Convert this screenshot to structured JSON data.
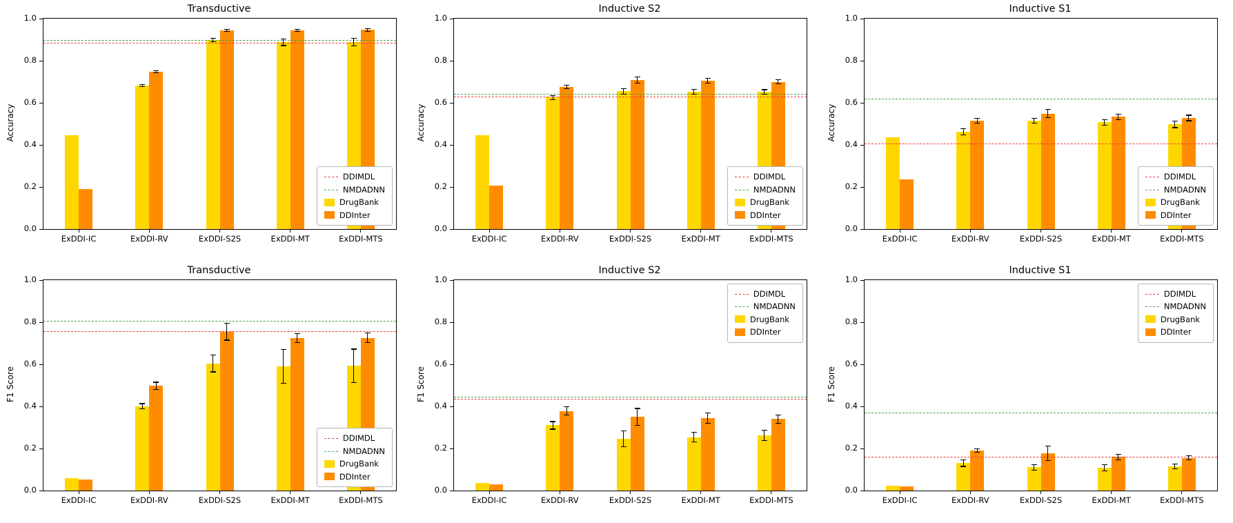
{
  "figure": {
    "background": "#ffffff",
    "error_bar_color": "#000000"
  },
  "chart_data": [
    {
      "type": "bar",
      "title": "Transductive",
      "ylabel": "Accuracy",
      "ylim": [
        0,
        1.0
      ],
      "yticks": [
        0.0,
        0.2,
        0.4,
        0.6,
        0.8,
        1.0
      ],
      "categories": [
        "ExDDI-IC",
        "ExDDI-RV",
        "ExDDI-S2S",
        "ExDDI-MT",
        "ExDDI-MTS"
      ],
      "series": [
        {
          "name": "DrugBank",
          "color": "#FFD700",
          "values": [
            0.447,
            0.683,
            0.899,
            0.887,
            0.888
          ],
          "errors": [
            0,
            0.005,
            0.008,
            0.015,
            0.018
          ]
        },
        {
          "name": "DDInter",
          "color": "#FF8C00",
          "values": [
            0.19,
            0.748,
            0.944,
            0.944,
            0.946
          ],
          "errors": [
            0,
            0.005,
            0.005,
            0.006,
            0.006
          ]
        }
      ],
      "hlines": [
        {
          "name": "DDIMDL",
          "color": "#ee3b3b",
          "value": 0.885,
          "style": "dashed"
        },
        {
          "name": "NMDADNN",
          "color": "#44a044",
          "value": 0.897,
          "style": "dashed"
        }
      ],
      "legend_position": "lower-right",
      "grid": false
    },
    {
      "type": "bar",
      "title": "Inductive S2",
      "ylabel": "Accuracy",
      "ylim": [
        0,
        1.0
      ],
      "yticks": [
        0.0,
        0.2,
        0.4,
        0.6,
        0.8,
        1.0
      ],
      "categories": [
        "ExDDI-IC",
        "ExDDI-RV",
        "ExDDI-S2S",
        "ExDDI-MT",
        "ExDDI-MTS"
      ],
      "series": [
        {
          "name": "DrugBank",
          "color": "#FFD700",
          "values": [
            0.445,
            0.625,
            0.655,
            0.653,
            0.652
          ],
          "errors": [
            0,
            0.01,
            0.013,
            0.012,
            0.01
          ]
        },
        {
          "name": "DDInter",
          "color": "#FF8C00",
          "values": [
            0.205,
            0.675,
            0.708,
            0.705,
            0.7
          ],
          "errors": [
            0,
            0.008,
            0.015,
            0.012,
            0.01
          ]
        }
      ],
      "hlines": [
        {
          "name": "DDIMDL",
          "color": "#ee3b3b",
          "value": 0.63,
          "style": "dashed"
        },
        {
          "name": "NMDADNN",
          "color": "#44a044",
          "value": 0.643,
          "style": "dashed"
        }
      ],
      "legend_position": "lower-right",
      "grid": false
    },
    {
      "type": "bar",
      "title": "Inductive S1",
      "ylabel": "Accuracy",
      "ylim": [
        0,
        1.0
      ],
      "yticks": [
        0.0,
        0.2,
        0.4,
        0.6,
        0.8,
        1.0
      ],
      "categories": [
        "ExDDI-IC",
        "ExDDI-RV",
        "ExDDI-S2S",
        "ExDDI-MT",
        "ExDDI-MTS"
      ],
      "series": [
        {
          "name": "DrugBank",
          "color": "#FFD700",
          "values": [
            0.435,
            0.462,
            0.515,
            0.507,
            0.497
          ],
          "errors": [
            0,
            0.015,
            0.012,
            0.013,
            0.015
          ]
        },
        {
          "name": "DDInter",
          "color": "#FF8C00",
          "values": [
            0.235,
            0.515,
            0.549,
            0.533,
            0.528
          ],
          "errors": [
            0,
            0.012,
            0.02,
            0.013,
            0.013
          ]
        }
      ],
      "hlines": [
        {
          "name": "DDIMDL",
          "color": "#ee3b3b",
          "value": 0.408,
          "style": "dashed"
        },
        {
          "name": "NMDADNN",
          "color": "#44a044",
          "value": 0.62,
          "style": "dashed"
        }
      ],
      "legend_position": "lower-right",
      "grid": false
    },
    {
      "type": "bar",
      "title": "Transductive",
      "ylabel": "F1 Score",
      "ylim": [
        0,
        1.0
      ],
      "yticks": [
        0.0,
        0.2,
        0.4,
        0.6,
        0.8,
        1.0
      ],
      "categories": [
        "ExDDI-IC",
        "ExDDI-RV",
        "ExDDI-S2S",
        "ExDDI-MT",
        "ExDDI-MTS"
      ],
      "series": [
        {
          "name": "DrugBank",
          "color": "#FFD700",
          "values": [
            0.058,
            0.401,
            0.604,
            0.59,
            0.592
          ],
          "errors": [
            0,
            0.012,
            0.04,
            0.08,
            0.08
          ]
        },
        {
          "name": "DDInter",
          "color": "#FF8C00",
          "values": [
            0.053,
            0.497,
            0.755,
            0.725,
            0.726
          ],
          "errors": [
            0,
            0.018,
            0.04,
            0.022,
            0.022
          ]
        }
      ],
      "hlines": [
        {
          "name": "DDIMDL",
          "color": "#ee3b3b",
          "value": 0.757,
          "style": "dashed"
        },
        {
          "name": "NMDADNN",
          "color": "#44a044",
          "value": 0.806,
          "style": "dashed"
        }
      ],
      "legend_position": "lower-right",
      "grid": false
    },
    {
      "type": "bar",
      "title": "Inductive S2",
      "ylabel": "F1 Score",
      "ylim": [
        0,
        1.0
      ],
      "yticks": [
        0.0,
        0.2,
        0.4,
        0.6,
        0.8,
        1.0
      ],
      "categories": [
        "ExDDI-IC",
        "ExDDI-RV",
        "ExDDI-S2S",
        "ExDDI-MT",
        "ExDDI-MTS"
      ],
      "series": [
        {
          "name": "DrugBank",
          "color": "#FFD700",
          "values": [
            0.035,
            0.31,
            0.245,
            0.254,
            0.263
          ],
          "errors": [
            0,
            0.018,
            0.038,
            0.022,
            0.025
          ]
        },
        {
          "name": "DDInter",
          "color": "#FF8C00",
          "values": [
            0.03,
            0.378,
            0.35,
            0.345,
            0.34
          ],
          "errors": [
            0,
            0.02,
            0.04,
            0.025,
            0.02
          ]
        }
      ],
      "hlines": [
        {
          "name": "DDIMDL",
          "color": "#ee3b3b",
          "value": 0.436,
          "style": "dashed"
        },
        {
          "name": "NMDADNN",
          "color": "#44a044",
          "value": 0.445,
          "style": "dashed"
        }
      ],
      "legend_position": "upper-right",
      "grid": false
    },
    {
      "type": "bar",
      "title": "Inductive S1",
      "ylabel": "F1 Score",
      "ylim": [
        0,
        1.0
      ],
      "yticks": [
        0.0,
        0.2,
        0.4,
        0.6,
        0.8,
        1.0
      ],
      "categories": [
        "ExDDI-IC",
        "ExDDI-RV",
        "ExDDI-S2S",
        "ExDDI-MT",
        "ExDDI-MTS"
      ],
      "series": [
        {
          "name": "DrugBank",
          "color": "#FFD700",
          "values": [
            0.024,
            0.13,
            0.11,
            0.108,
            0.114
          ],
          "errors": [
            0,
            0.015,
            0.012,
            0.015,
            0.012
          ]
        },
        {
          "name": "DDInter",
          "color": "#FF8C00",
          "values": [
            0.02,
            0.19,
            0.177,
            0.16,
            0.155
          ],
          "errors": [
            0,
            0.008,
            0.035,
            0.013,
            0.01
          ]
        }
      ],
      "hlines": [
        {
          "name": "DDIMDL",
          "color": "#ee3b3b",
          "value": 0.16,
          "style": "dashed"
        },
        {
          "name": "NMDADNN",
          "color": "#44a044",
          "value": 0.37,
          "style": "dashed"
        }
      ],
      "legend_position": "upper-right",
      "grid": false
    }
  ]
}
